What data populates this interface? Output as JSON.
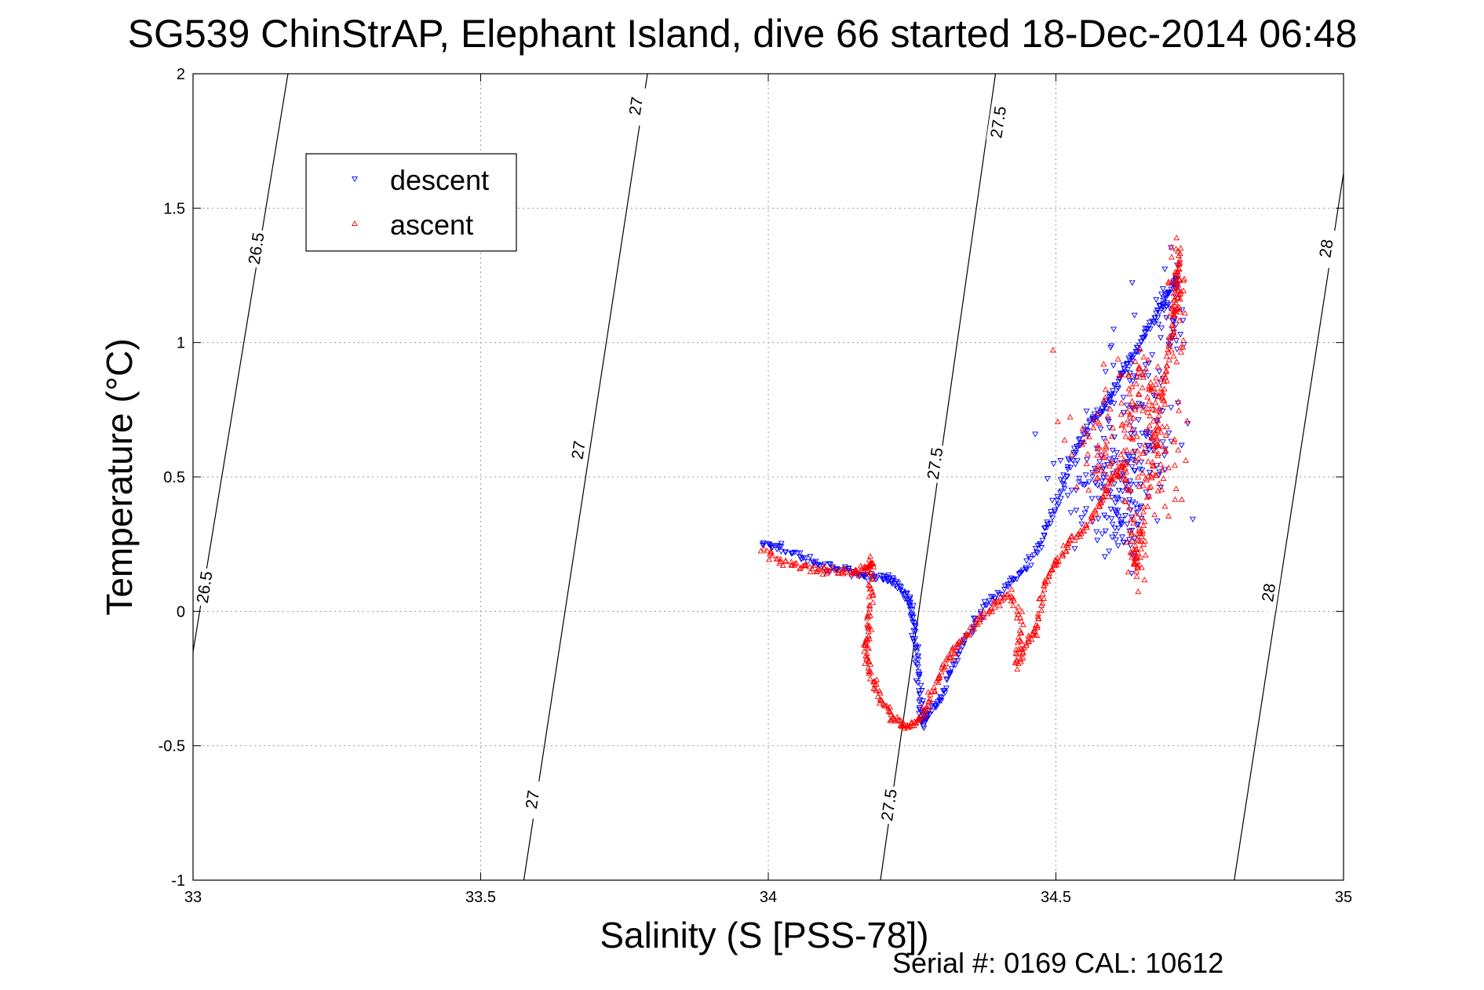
{
  "chart_data": {
    "type": "scatter",
    "title": "SG539 ChinStrAP, Elephant Island, dive 66 started 18-Dec-2014 06:48",
    "xlabel": "Salinity (S [PSS-78])",
    "ylabel": "Temperature (°C)",
    "xlim": [
      33,
      35
    ],
    "ylim": [
      -1,
      2
    ],
    "xticks": [
      33,
      33.5,
      34,
      34.5,
      35
    ],
    "yticks": [
      -1,
      -0.5,
      0,
      0.5,
      1,
      1.5,
      2
    ],
    "xtick_labels": [
      "33",
      "33.5",
      "34",
      "34.5",
      "35"
    ],
    "ytick_labels": [
      "-1",
      "-0.5",
      "0",
      "0.5",
      "1",
      "1.5",
      "2"
    ],
    "grid": true,
    "legend_position": "top-left",
    "density_contours": [
      {
        "label": "26.5",
        "points": [
          [
            33.0,
            -0.15
          ],
          [
            33.165,
            2.0
          ]
        ]
      },
      {
        "label": "27",
        "points": [
          [
            33.575,
            -1.0
          ],
          [
            33.79,
            2.0
          ]
        ]
      },
      {
        "label": "27.5",
        "points": [
          [
            34.195,
            -1.0
          ],
          [
            34.395,
            2.0
          ]
        ]
      },
      {
        "label": "28",
        "points": [
          [
            34.81,
            -1.0
          ],
          [
            35.0,
            1.63
          ]
        ]
      }
    ],
    "contour_labels": [
      {
        "text": "26.5",
        "x": 33.11,
        "y": 1.35
      },
      {
        "text": "26.5",
        "x": 33.02,
        "y": 0.09
      },
      {
        "text": "27",
        "x": 33.77,
        "y": 1.88
      },
      {
        "text": "27",
        "x": 33.67,
        "y": 0.6
      },
      {
        "text": "27",
        "x": 33.59,
        "y": -0.7
      },
      {
        "text": "27.5",
        "x": 34.4,
        "y": 1.82
      },
      {
        "text": "27.5",
        "x": 34.29,
        "y": 0.55
      },
      {
        "text": "27.5",
        "x": 34.21,
        "y": -0.72
      },
      {
        "text": "28",
        "x": 34.97,
        "y": 1.35
      },
      {
        "text": "28",
        "x": 34.87,
        "y": 0.07
      }
    ],
    "series": [
      {
        "name": "descent",
        "color": "#0000ff",
        "marker": "triangle-down",
        "path": [
          [
            33.99,
            0.25
          ],
          [
            34.02,
            0.24
          ],
          [
            34.06,
            0.2
          ],
          [
            34.1,
            0.17
          ],
          [
            34.14,
            0.15
          ],
          [
            34.17,
            0.13
          ],
          [
            34.2,
            0.13
          ],
          [
            34.22,
            0.11
          ],
          [
            34.24,
            0.06
          ],
          [
            34.25,
            0.0
          ],
          [
            34.255,
            -0.1
          ],
          [
            34.26,
            -0.22
          ],
          [
            34.265,
            -0.35
          ],
          [
            34.27,
            -0.42
          ],
          [
            34.28,
            -0.38
          ],
          [
            34.3,
            -0.33
          ],
          [
            34.32,
            -0.2
          ],
          [
            34.35,
            -0.08
          ],
          [
            34.38,
            0.03
          ],
          [
            34.42,
            0.1
          ],
          [
            34.45,
            0.17
          ],
          [
            34.48,
            0.28
          ],
          [
            34.5,
            0.4
          ],
          [
            34.52,
            0.53
          ],
          [
            34.54,
            0.62
          ],
          [
            34.56,
            0.7
          ],
          [
            34.58,
            0.75
          ],
          [
            34.6,
            0.82
          ],
          [
            34.62,
            0.9
          ],
          [
            34.64,
            0.97
          ],
          [
            34.66,
            1.05
          ],
          [
            34.68,
            1.12
          ],
          [
            34.7,
            1.2
          ],
          [
            34.71,
            1.25
          ]
        ],
        "clouds": [
          {
            "cx": 34.58,
            "cy": 0.5,
            "sx": 0.04,
            "sy": 0.12,
            "n": 90
          },
          {
            "cx": 34.65,
            "cy": 0.72,
            "sx": 0.03,
            "sy": 0.18,
            "n": 90
          },
          {
            "cx": 34.62,
            "cy": 0.35,
            "sx": 0.025,
            "sy": 0.1,
            "n": 50
          },
          {
            "cx": 34.7,
            "cy": 1.1,
            "sx": 0.012,
            "sy": 0.08,
            "n": 40
          }
        ]
      },
      {
        "name": "ascent",
        "color": "#ff0000",
        "marker": "triangle-up",
        "path": [
          [
            33.99,
            0.22
          ],
          [
            34.03,
            0.18
          ],
          [
            34.07,
            0.16
          ],
          [
            34.11,
            0.15
          ],
          [
            34.15,
            0.14
          ],
          [
            34.17,
            0.16
          ],
          [
            34.18,
            0.19
          ],
          [
            34.18,
            0.07
          ],
          [
            34.175,
            -0.05
          ],
          [
            34.17,
            -0.13
          ],
          [
            34.175,
            -0.22
          ],
          [
            34.19,
            -0.3
          ],
          [
            34.21,
            -0.38
          ],
          [
            34.23,
            -0.42
          ],
          [
            34.25,
            -0.43
          ],
          [
            34.27,
            -0.38
          ],
          [
            34.29,
            -0.28
          ],
          [
            34.31,
            -0.18
          ],
          [
            34.33,
            -0.12
          ],
          [
            34.36,
            -0.05
          ],
          [
            34.39,
            0.02
          ],
          [
            34.42,
            0.07
          ],
          [
            34.44,
            -0.05
          ],
          [
            34.43,
            -0.2
          ],
          [
            34.45,
            -0.12
          ],
          [
            34.47,
            -0.05
          ],
          [
            34.48,
            0.1
          ],
          [
            34.5,
            0.18
          ],
          [
            34.52,
            0.25
          ],
          [
            34.55,
            0.3
          ],
          [
            34.58,
            0.42
          ],
          [
            34.6,
            0.5
          ],
          [
            34.62,
            0.55
          ],
          [
            34.64,
            0.15
          ],
          [
            34.65,
            0.3
          ],
          [
            34.67,
            0.6
          ],
          [
            34.69,
            0.85
          ],
          [
            34.7,
            1.05
          ],
          [
            34.71,
            1.2
          ],
          [
            34.715,
            1.36
          ]
        ],
        "clouds": [
          {
            "cx": 34.6,
            "cy": 0.6,
            "sx": 0.04,
            "sy": 0.13,
            "n": 90
          },
          {
            "cx": 34.67,
            "cy": 0.62,
            "sx": 0.03,
            "sy": 0.15,
            "n": 80
          },
          {
            "cx": 34.65,
            "cy": 0.85,
            "sx": 0.02,
            "sy": 0.06,
            "n": 40
          },
          {
            "cx": 34.71,
            "cy": 1.15,
            "sx": 0.008,
            "sy": 0.12,
            "n": 50
          },
          {
            "cx": 34.64,
            "cy": 0.22,
            "sx": 0.01,
            "sy": 0.06,
            "n": 30
          }
        ]
      }
    ]
  },
  "footer": {
    "serial_text": "Serial #: 0169 CAL: 10612"
  }
}
